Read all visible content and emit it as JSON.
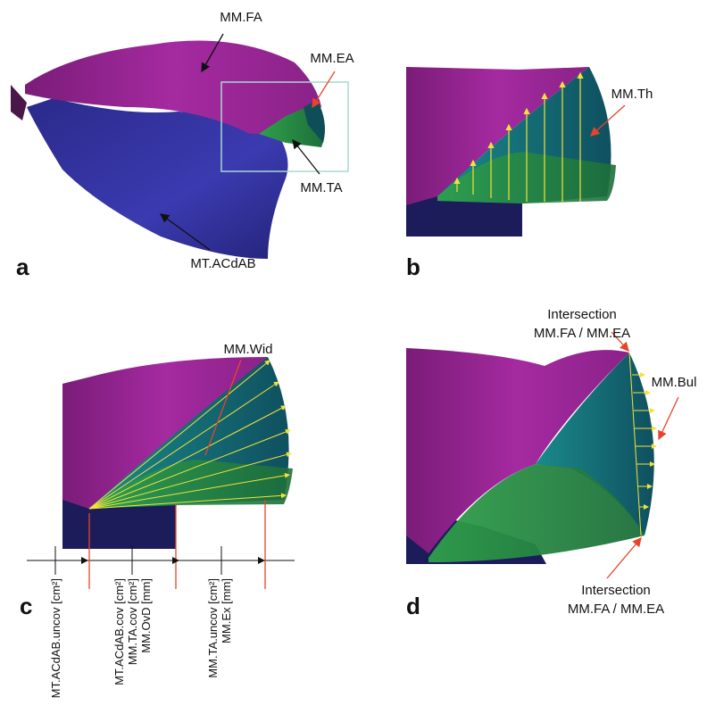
{
  "panels": [
    {
      "letter": "a",
      "labels": [
        "MM.FA",
        "MM.EA",
        "MM.TA",
        "MT.ACdAB"
      ]
    },
    {
      "letter": "b",
      "labels": [
        "MM.Th"
      ]
    },
    {
      "letter": "c",
      "labels": [
        "MM.Wid"
      ],
      "dimension_labels": [
        [
          "MT.ACdAB.uncov [cm²]"
        ],
        [
          "MT.ACdAB.cov [cm²]",
          "MM.TA.cov [cm²]",
          "MM.OvD [mm]"
        ],
        [
          "MM.TA.uncov [cm²]",
          "MM.Ex [mm]"
        ]
      ]
    },
    {
      "letter": "d",
      "labels": [
        "MM.Bul"
      ],
      "top_note": [
        "Intersection",
        "MM.FA / MM.EA"
      ],
      "bottom_note": [
        "Intersection",
        "MM.FA / MM.EA"
      ]
    }
  ]
}
